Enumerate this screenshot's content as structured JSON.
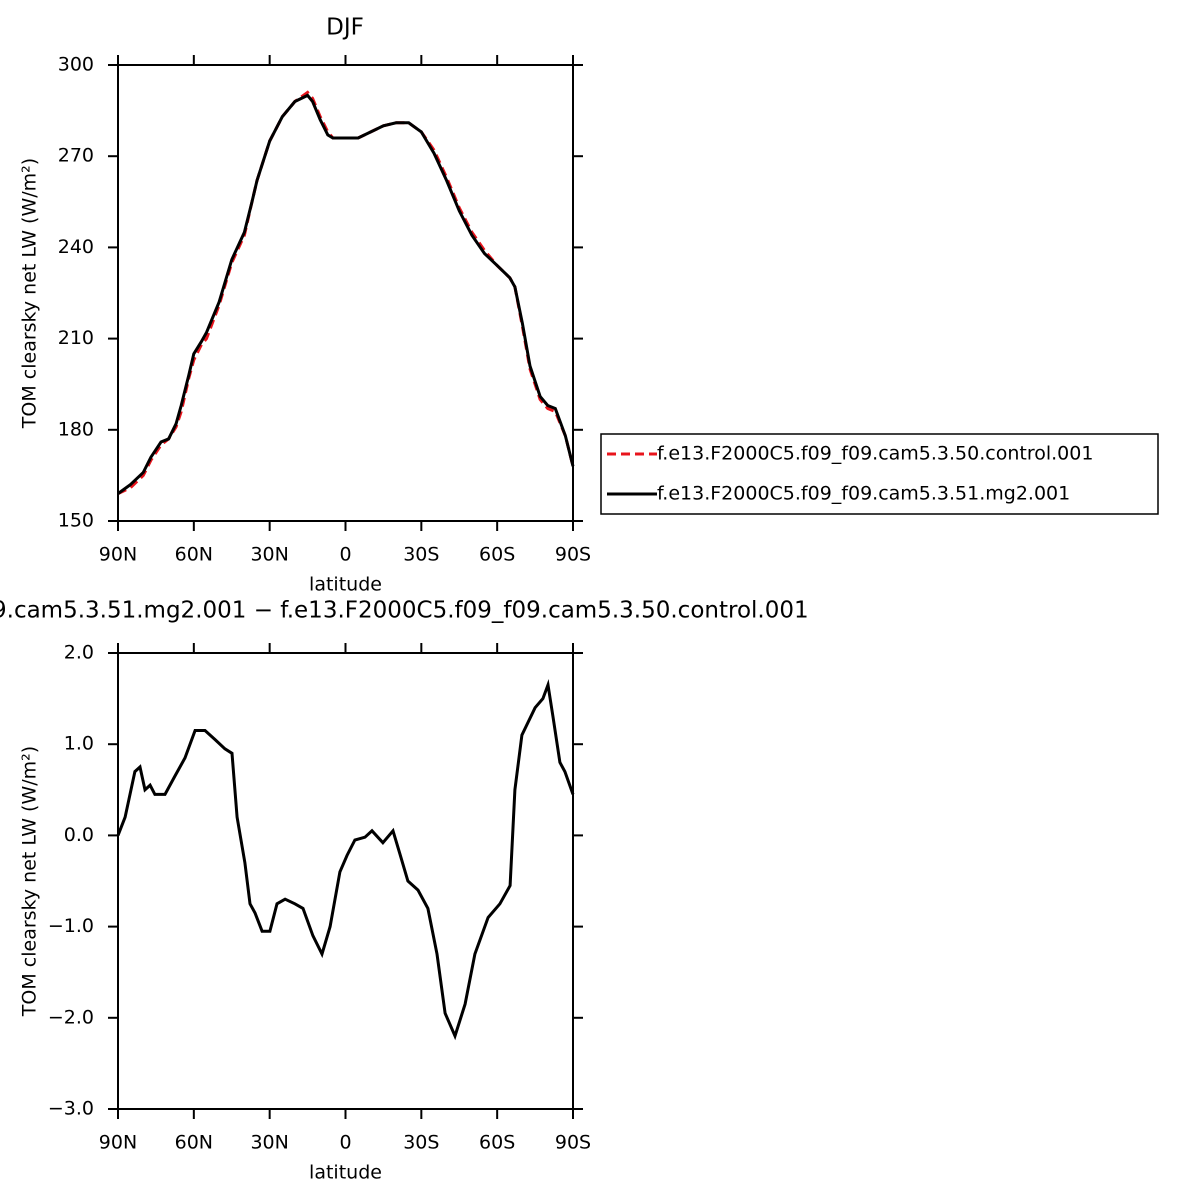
{
  "chart_data": [
    {
      "type": "line",
      "title": "DJF",
      "xlabel": "latitude",
      "ylabel": "TOM clearsky net LW (W/m²)",
      "xlim": [
        90,
        -90
      ],
      "xticks": [
        {
          "value": 90,
          "label": "90N"
        },
        {
          "value": 60,
          "label": "60N"
        },
        {
          "value": 30,
          "label": "30N"
        },
        0,
        {
          "value": -30,
          "label": "30S"
        },
        {
          "value": -60,
          "label": "60S"
        },
        {
          "value": -90,
          "label": "90S"
        }
      ],
      "ylim": [
        150,
        300
      ],
      "yticks": [
        150,
        180,
        210,
        240,
        270,
        300
      ],
      "legend": "right",
      "x": [
        90,
        85,
        80,
        77,
        73,
        70,
        67,
        65,
        62,
        60,
        57,
        55,
        50,
        45,
        40,
        37,
        35,
        30,
        25,
        20,
        15,
        13,
        10,
        7,
        5,
        0,
        -5,
        -10,
        -15,
        -20,
        -25,
        -30,
        -35,
        -40,
        -45,
        -50,
        -55,
        -60,
        -65,
        -67,
        -70,
        -73,
        -77,
        -80,
        -83,
        -87,
        -90
      ],
      "series": [
        {
          "name": "f.e13.F2000C5.f09_f09.cam5.3.50.control.001",
          "color": "#e8141c",
          "dash": true,
          "values": [
            159,
            161,
            165,
            170,
            175,
            177,
            181,
            186,
            197,
            203,
            208,
            210,
            221,
            235,
            244,
            255,
            262,
            275,
            283,
            288,
            291,
            289,
            283,
            278,
            276,
            276,
            276,
            278,
            280,
            281,
            281,
            278,
            272,
            263,
            253,
            245,
            239,
            234,
            230,
            227,
            214,
            200,
            190,
            187,
            186,
            178,
            168
          ]
        },
        {
          "name": "f.e13.F2000C5.f09_f09.cam5.3.51.mg2.001",
          "color": "#000000",
          "dash": false,
          "values": [
            159,
            162,
            166,
            171,
            176,
            177,
            182,
            188,
            198,
            205,
            209,
            212,
            222,
            236,
            245,
            255,
            262,
            275,
            283,
            288,
            290,
            288,
            282,
            277,
            276,
            276,
            276,
            278,
            280,
            281,
            281,
            278,
            271,
            262,
            252,
            244,
            238,
            234,
            230,
            227,
            215,
            201,
            191,
            188,
            187,
            178,
            168
          ]
        }
      ]
    },
    {
      "type": "line",
      "title": "9.cam5.3.51.mg2.001 − f.e13.F2000C5.f09_f09.cam5.3.50.control.001",
      "xlabel": "latitude",
      "ylabel": "TOM clearsky net LW (W/m²)",
      "xlim": [
        90,
        -90
      ],
      "xticks": [
        {
          "value": 90,
          "label": "90N"
        },
        {
          "value": 60,
          "label": "60N"
        },
        {
          "value": 30,
          "label": "30N"
        },
        0,
        {
          "value": -30,
          "label": "30S"
        },
        {
          "value": -60,
          "label": "60S"
        },
        {
          "value": -90,
          "label": "90S"
        }
      ],
      "ylim": [
        -3,
        2
      ],
      "yticks": [
        {
          "value": -3,
          "label": "−3.0"
        },
        {
          "value": -2,
          "label": "−2.0"
        },
        {
          "value": -1,
          "label": "−1.0"
        },
        {
          "value": 0,
          "label": "0.0"
        },
        {
          "value": 1,
          "label": "1.0"
        },
        {
          "value": 2,
          "label": "2.0"
        }
      ],
      "x": [
        90,
        87.2,
        83.3,
        81.3,
        79.3,
        77.3,
        75.4,
        71.4,
        67.5,
        63.5,
        59.5,
        55.6,
        51.6,
        47.7,
        44.9,
        42.9,
        39.8,
        37.8,
        35.8,
        33,
        29.9,
        27.1,
        23.9,
        20,
        16.8,
        12.9,
        9.3,
        6.1,
        2.2,
        -0.6,
        -3.7,
        -7.7,
        -10.5,
        -14.8,
        -18.8,
        -21.5,
        -24.7,
        -28.7,
        -32.6,
        -36.2,
        -39.4,
        -43.3,
        -47.3,
        -51.2,
        -56.4,
        -61.1,
        -65.1,
        -67,
        -69.8,
        -75,
        -78.1,
        -80.1,
        -82.1,
        -84.8,
        -86.8,
        -90
      ],
      "series": [
        {
          "name": null,
          "color": "#000000",
          "dash": false,
          "values": [
            0,
            0.2,
            0.7,
            0.75,
            0.5,
            0.55,
            0.45,
            0.45,
            0.65,
            0.85,
            1.15,
            1.15,
            1.05,
            0.95,
            0.9,
            0.2,
            -0.3,
            -0.75,
            -0.85,
            -1.05,
            -1.05,
            -0.75,
            -0.7,
            -0.75,
            -0.8,
            -1.1,
            -1.3,
            -1,
            -0.4,
            -0.22,
            -0.05,
            -0.02,
            0.05,
            -0.08,
            0.05,
            -0.2,
            -0.5,
            -0.6,
            -0.8,
            -1.3,
            -1.95,
            -2.2,
            -1.85,
            -1.3,
            -0.9,
            -0.75,
            -0.55,
            0.5,
            1.1,
            1.4,
            1.5,
            1.65,
            1.3,
            0.8,
            0.7,
            0.45
          ]
        }
      ]
    }
  ]
}
